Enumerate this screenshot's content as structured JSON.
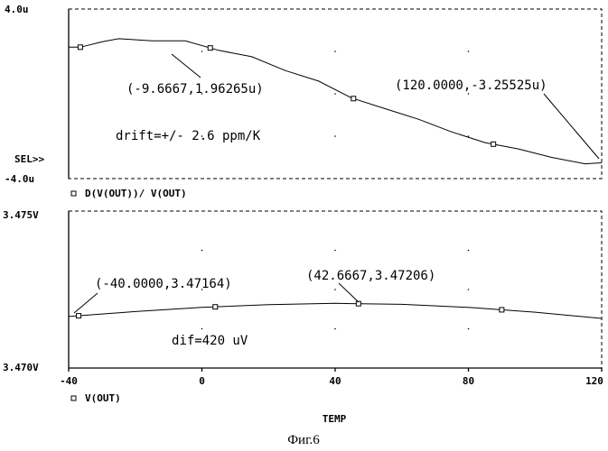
{
  "chart_data": [
    {
      "type": "line",
      "ylim": [
        -4.0,
        4.0
      ],
      "xlim": [
        -40,
        120
      ],
      "ytick_labels": [
        "4.0u",
        "-4.0u"
      ],
      "cursor_label": "SEL>>",
      "legend": "D(V(OUT))/ V(OUT)",
      "series": [
        {
          "x": [
            -40,
            -36.5,
            -30,
            -25,
            -15,
            -5,
            5,
            15,
            25,
            35,
            45,
            55,
            65,
            75,
            85,
            95,
            105,
            115,
            120
          ],
          "y": [
            2.2,
            2.2,
            2.45,
            2.6,
            2.5,
            2.5,
            2.05,
            1.75,
            1.1,
            0.6,
            -0.2,
            -0.7,
            -1.2,
            -1.8,
            -2.3,
            -2.6,
            -3.0,
            -3.3,
            -3.25525
          ],
          "marker_x": [
            -36.5,
            2.5,
            45.5,
            87.5
          ]
        }
      ],
      "annotations": [
        {
          "label": "(-9.6667,1.96265u)",
          "x": -9.6667,
          "y": 1.96265
        },
        {
          "label": "(120.0000,-3.25525u)",
          "x": 120,
          "y": -3.25525
        }
      ],
      "note": "drift=+/- 2.6 ppm/K",
      "grid": true
    },
    {
      "type": "line",
      "ylim": [
        3.47,
        3.475
      ],
      "xlim": [
        -40,
        120
      ],
      "ytick_labels": [
        "3.475V",
        "3.470V"
      ],
      "xtick_labels": [
        "-40",
        "0",
        "40",
        "80",
        "120"
      ],
      "xticks": [
        -40,
        0,
        40,
        80,
        120
      ],
      "xlabel": "TEMP",
      "legend": "V(OUT)",
      "series": [
        {
          "x": [
            -40,
            -20,
            0,
            20,
            40,
            60,
            80,
            100,
            120
          ],
          "y": [
            3.47164,
            3.4718,
            3.47193,
            3.47202,
            3.47206,
            3.47203,
            3.47193,
            3.47178,
            3.47158
          ],
          "marker_x": [
            -37,
            4,
            47,
            90
          ]
        }
      ],
      "annotations": [
        {
          "label": "(-40.0000,3.47164)",
          "x": -40,
          "y": 3.47164
        },
        {
          "label": "(42.6667,3.47206)",
          "x": 42.6667,
          "y": 3.47206
        }
      ],
      "note": "dif=420 uV",
      "grid": true
    }
  ],
  "caption": "Фиг.6"
}
